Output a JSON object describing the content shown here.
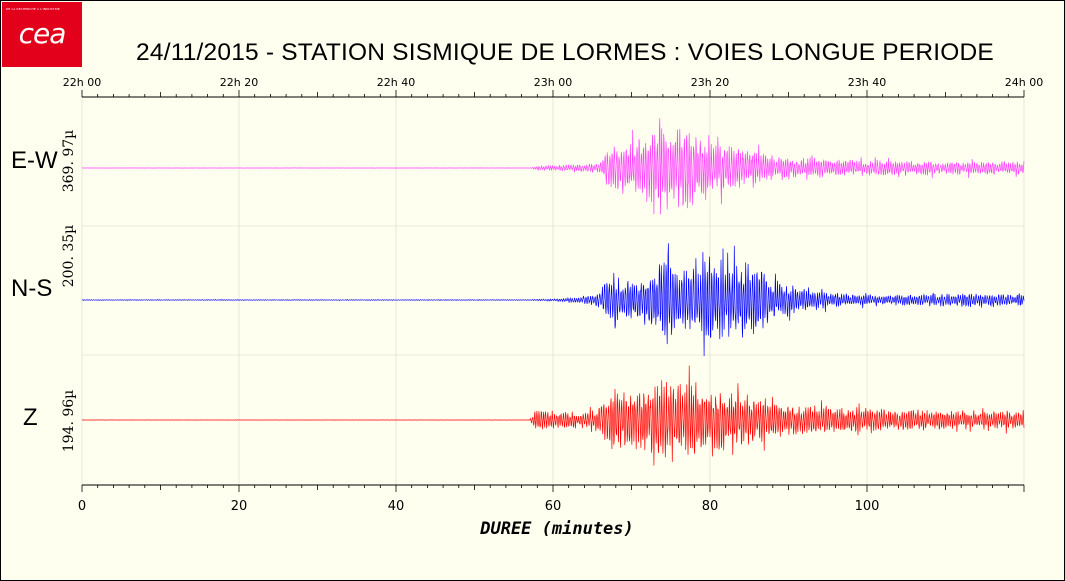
{
  "logo": {
    "tagline": "DE LA RECHERCHE À L'INDUSTRIE",
    "brand": "cea"
  },
  "title": "24/11/2015  -  STATION SISMIQUE DE LORMES : VOIES LONGUE PERIODE",
  "chart_data": {
    "type": "line",
    "title": "24/11/2015  -  STATION SISMIQUE DE LORMES : VOIES LONGUE PERIODE",
    "xlabel": "DUREE (minutes)",
    "xlim": [
      0,
      120
    ],
    "x_ticks": [
      0,
      20,
      40,
      60,
      80,
      100
    ],
    "x_tick_labels": [
      "0",
      "20",
      "40",
      "60",
      "80",
      "100"
    ],
    "top_axis_ticks": [
      0,
      20,
      40,
      60,
      80,
      100,
      120
    ],
    "top_axis_labels": [
      "22h 00",
      "22h 20",
      "22h 40",
      "23h 00",
      "23h 20",
      "23h 40",
      "24h 00"
    ],
    "grid": true,
    "series": [
      {
        "name": "E-W",
        "scale": "369. 97µ",
        "color": "#ff40ff",
        "onset_min": 57.5,
        "envelope": [
          [
            0,
            0.004
          ],
          [
            57,
            0.005
          ],
          [
            58,
            0.04
          ],
          [
            62,
            0.06
          ],
          [
            66,
            0.1
          ],
          [
            67,
            0.35
          ],
          [
            69,
            0.55
          ],
          [
            71,
            0.6
          ],
          [
            73,
            0.75
          ],
          [
            74,
            1.0
          ],
          [
            75,
            0.7
          ],
          [
            77,
            0.85
          ],
          [
            79,
            0.7
          ],
          [
            81,
            0.5
          ],
          [
            83,
            0.45
          ],
          [
            85,
            0.35
          ],
          [
            88,
            0.25
          ],
          [
            92,
            0.2
          ],
          [
            100,
            0.15
          ],
          [
            110,
            0.13
          ],
          [
            120,
            0.14
          ]
        ]
      },
      {
        "name": "N-S",
        "scale": "200. 35µ",
        "color": "#0000ff",
        "onset_min": 57.5,
        "envelope": [
          [
            0,
            0.01
          ],
          [
            57,
            0.012
          ],
          [
            60,
            0.02
          ],
          [
            63,
            0.05
          ],
          [
            66,
            0.15
          ],
          [
            67,
            0.45
          ],
          [
            69,
            0.4
          ],
          [
            71,
            0.45
          ],
          [
            73,
            0.6
          ],
          [
            74,
            0.95
          ],
          [
            76,
            0.55
          ],
          [
            78,
            0.65
          ],
          [
            80,
            0.9
          ],
          [
            82,
            0.75
          ],
          [
            84,
            0.7
          ],
          [
            86,
            0.7
          ],
          [
            88,
            0.4
          ],
          [
            91,
            0.25
          ],
          [
            95,
            0.15
          ],
          [
            100,
            0.1
          ],
          [
            110,
            0.12
          ],
          [
            120,
            0.12
          ]
        ]
      },
      {
        "name": "Z",
        "scale": "194. 96µ",
        "color": "#ff0000",
        "onset_min": 57.5,
        "envelope": [
          [
            0,
            0.003
          ],
          [
            57,
            0.004
          ],
          [
            57.5,
            0.25
          ],
          [
            60,
            0.2
          ],
          [
            63,
            0.15
          ],
          [
            65,
            0.2
          ],
          [
            66,
            0.35
          ],
          [
            68,
            0.75
          ],
          [
            70,
            0.7
          ],
          [
            72,
            0.75
          ],
          [
            74,
            0.9
          ],
          [
            76,
            0.65
          ],
          [
            78,
            0.95
          ],
          [
            80,
            0.8
          ],
          [
            82,
            0.7
          ],
          [
            84,
            0.6
          ],
          [
            87,
            0.5
          ],
          [
            90,
            0.35
          ],
          [
            95,
            0.3
          ],
          [
            100,
            0.28
          ],
          [
            110,
            0.22
          ],
          [
            120,
            0.2
          ]
        ]
      }
    ]
  }
}
